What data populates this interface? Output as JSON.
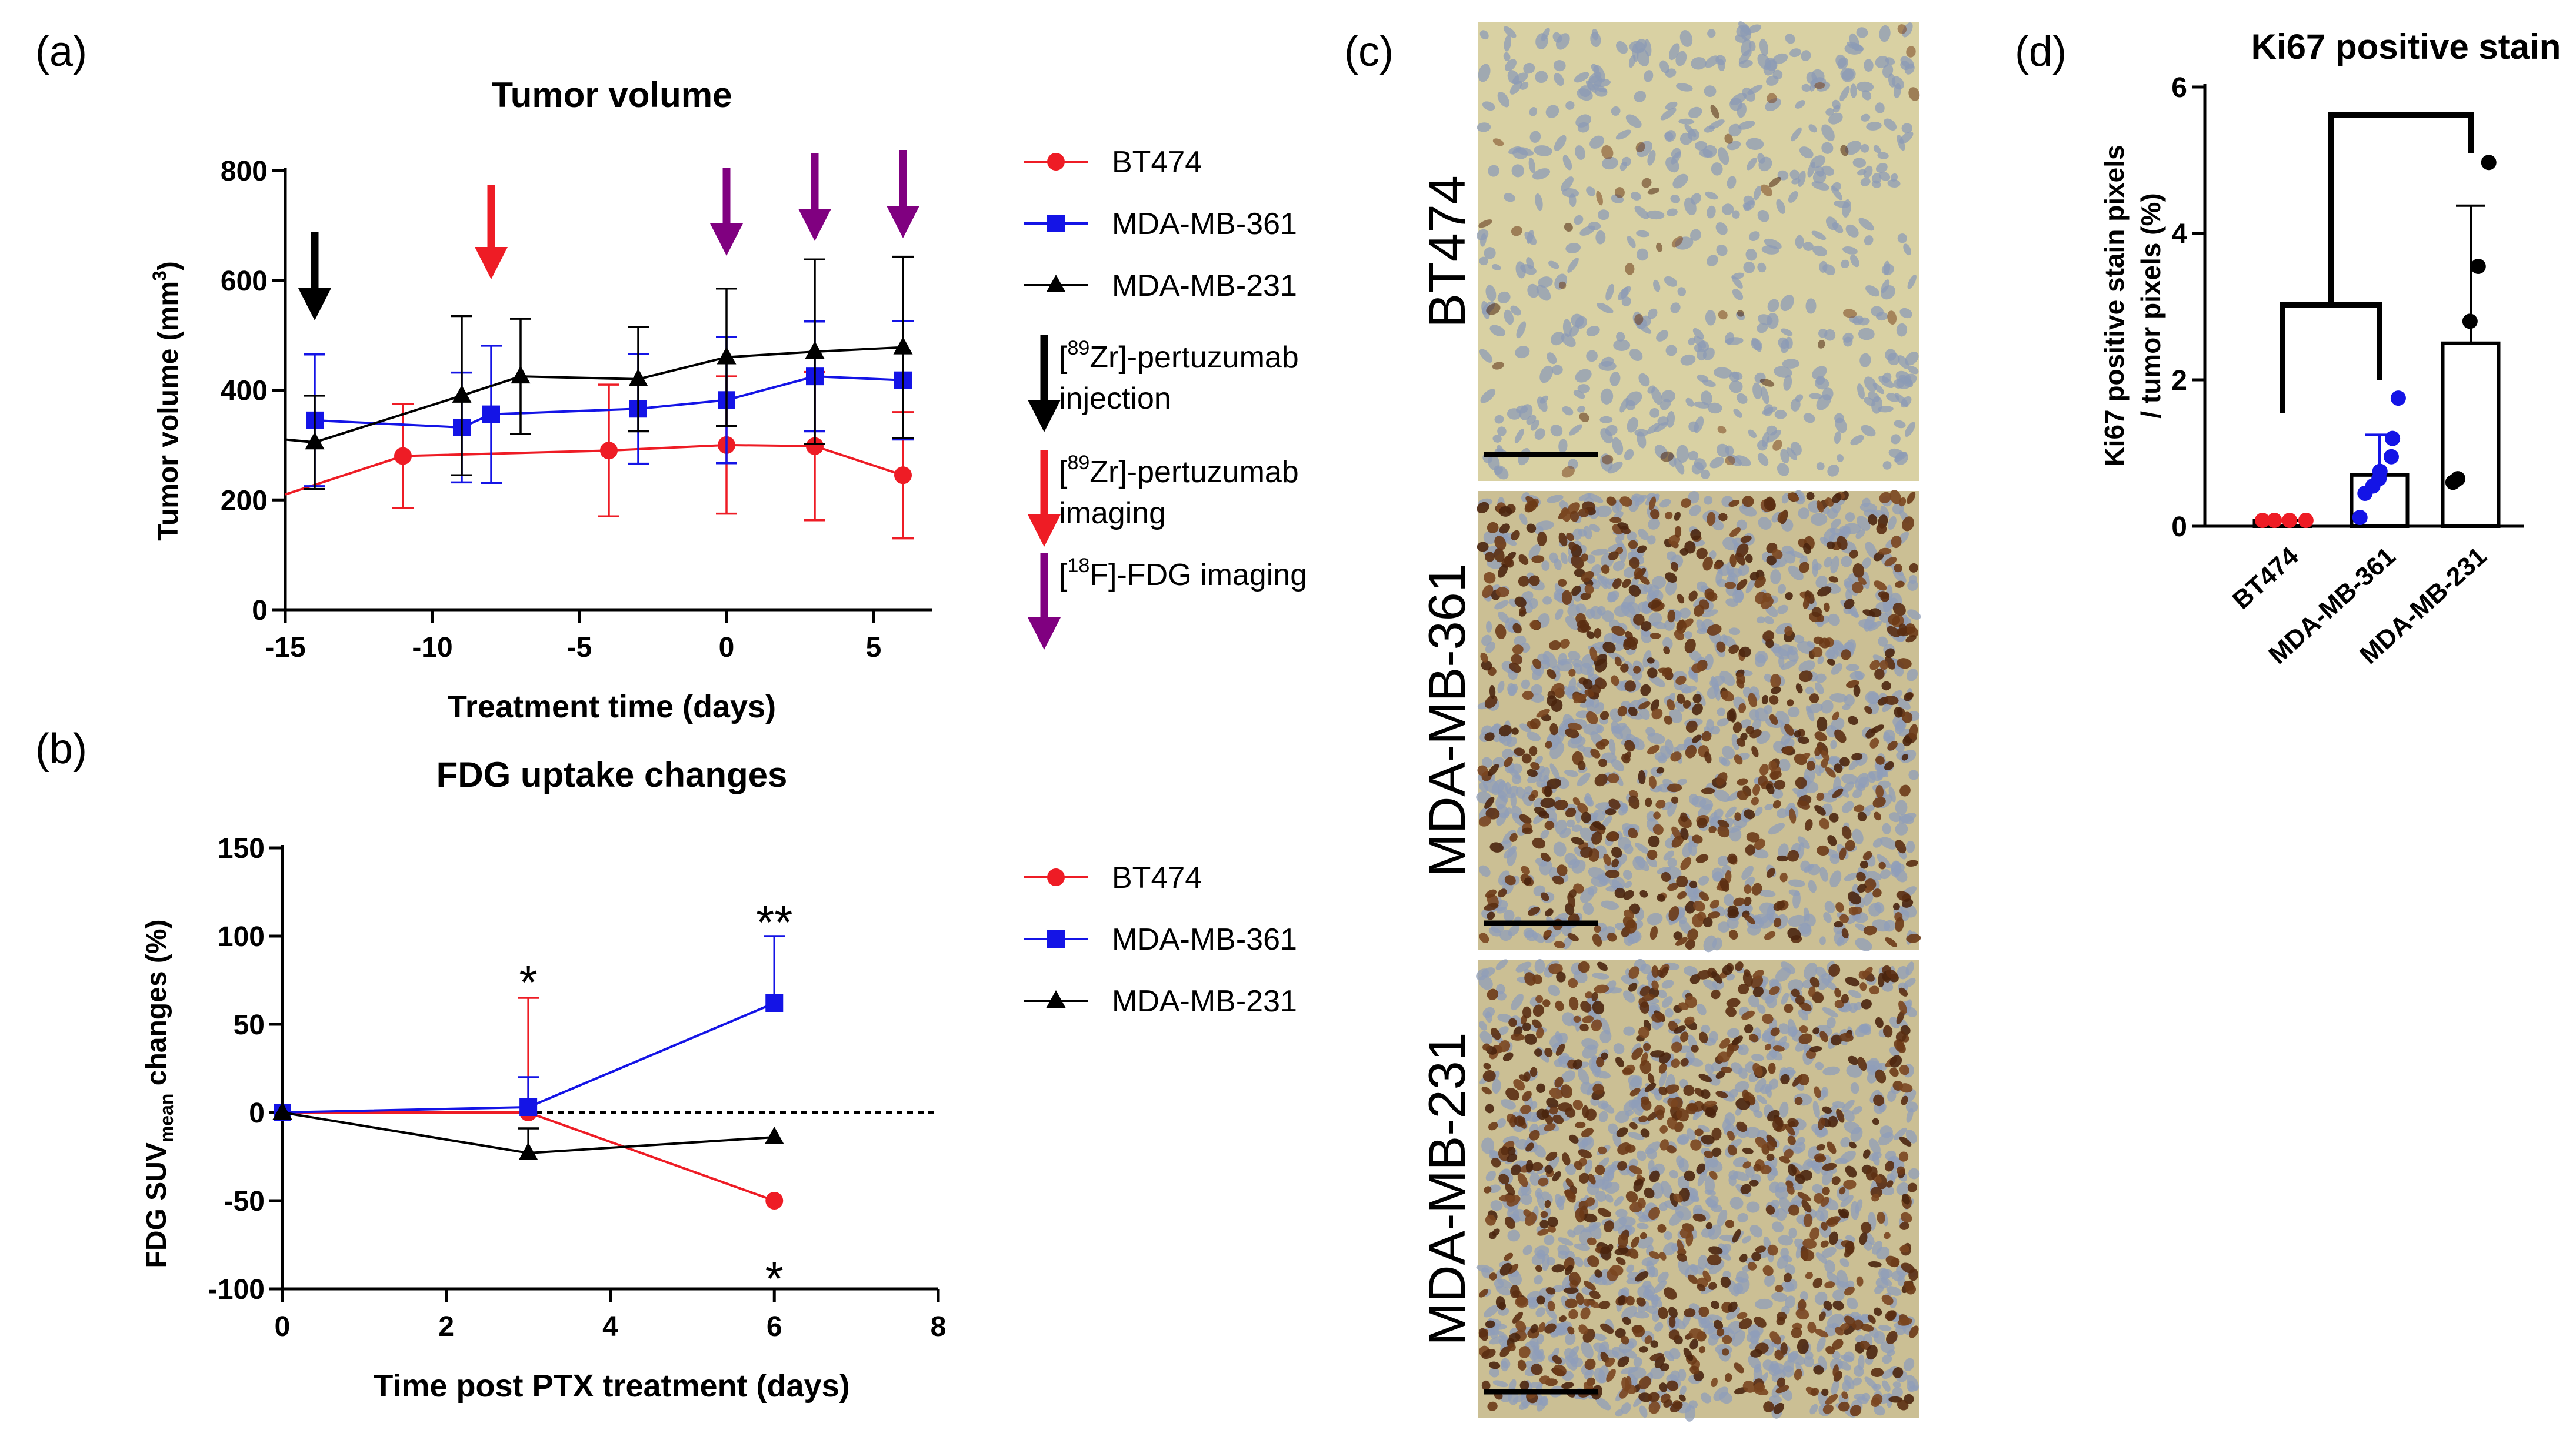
{
  "panels": {
    "a": {
      "label": "(a)"
    },
    "b": {
      "label": "(b)"
    },
    "c": {
      "label": "(c)"
    },
    "d": {
      "label": "(d)"
    }
  },
  "colors": {
    "bt474": "#ee1c25",
    "mda361": "#1414e6",
    "mda231": "#000000",
    "purple": "#800080"
  },
  "chart_data": [
    {
      "id": "a",
      "type": "line",
      "title": "Tumor volume",
      "xlabel": "Treatment time (days)",
      "ylabel": "Tumor volume (mm",
      "ylabel_sup": "3",
      "ylabel_end": ")",
      "xlim": [
        -15,
        7
      ],
      "ylim": [
        0,
        800
      ],
      "xticks": [
        -15,
        -10,
        -5,
        0,
        5
      ],
      "yticks": [
        0,
        200,
        400,
        600,
        800
      ],
      "series": [
        {
          "name": "BT474",
          "color": "#ee1c25",
          "marker": "circle",
          "x": [
            -15,
            -11,
            -4,
            0,
            3,
            6
          ],
          "y": [
            210,
            280,
            290,
            300,
            298,
            245
          ],
          "err": [
            0,
            95,
            120,
            125,
            135,
            115
          ]
        },
        {
          "name": "MDA-MB-361",
          "color": "#1414e6",
          "marker": "square",
          "x": [
            -14,
            -9,
            -8,
            -3,
            0,
            3,
            6
          ],
          "y": [
            345,
            332,
            356,
            366,
            382,
            425,
            418
          ],
          "err": [
            120,
            100,
            125,
            100,
            115,
            100,
            108
          ]
        },
        {
          "name": "MDA-MB-231",
          "color": "#000000",
          "marker": "triangle",
          "x": [
            -15,
            -14,
            -9,
            -7,
            -3,
            0,
            3,
            6
          ],
          "y": [
            310,
            305,
            390,
            425,
            420,
            460,
            470,
            478
          ],
          "err": [
            0,
            85,
            145,
            105,
            95,
            125,
            168,
            165
          ]
        }
      ],
      "arrows": [
        {
          "x": -14,
          "color": "#000000",
          "kind": "pertuzumab-injection"
        },
        {
          "x": -8,
          "color": "#ee1c25",
          "kind": "pertuzumab-imaging"
        },
        {
          "x": 0,
          "color": "#800080",
          "kind": "fdg-imaging"
        },
        {
          "x": 3,
          "color": "#800080",
          "kind": "fdg-imaging"
        },
        {
          "x": 6,
          "color": "#800080",
          "kind": "fdg-imaging"
        }
      ],
      "legend": [
        {
          "text": "BT474",
          "color": "#ee1c25",
          "marker": "circle"
        },
        {
          "text": "MDA-MB-361",
          "color": "#1414e6",
          "marker": "square"
        },
        {
          "text": "MDA-MB-231",
          "color": "#000000",
          "marker": "triangle"
        }
      ],
      "arrow_legend": [
        {
          "color": "#000000",
          "pre": "[",
          "sup": "89",
          "post": "Zr]-pertuzumab",
          "line2": "injection"
        },
        {
          "color": "#ee1c25",
          "pre": "[",
          "sup": "89",
          "post": "Zr]-pertuzumab",
          "line2": "imaging"
        },
        {
          "color": "#800080",
          "pre": "[",
          "sup": "18",
          "post": "F]-FDG imaging",
          "line2": ""
        }
      ]
    },
    {
      "id": "b",
      "type": "line",
      "title": "FDG uptake changes",
      "xlabel": "Time post PTX treatment (days)",
      "ylabel": "FDG SUV",
      "ylabel_sub": "mean",
      "ylabel_end": " changes (%)",
      "xlim": [
        0,
        8
      ],
      "ylim": [
        -100,
        150
      ],
      "xticks": [
        0,
        2,
        4,
        6,
        8
      ],
      "yticks": [
        -100,
        -50,
        0,
        50,
        100,
        150
      ],
      "reference_line": 0,
      "series": [
        {
          "name": "BT474",
          "color": "#ee1c25",
          "marker": "circle",
          "x": [
            0,
            3,
            6
          ],
          "y": [
            0,
            0,
            -50
          ],
          "err": [
            0,
            65,
            0
          ]
        },
        {
          "name": "MDA-MB-361",
          "color": "#1414e6",
          "marker": "square",
          "x": [
            0,
            3,
            6
          ],
          "y": [
            0,
            3,
            62
          ],
          "err": [
            0,
            17,
            38
          ]
        },
        {
          "name": "MDA-MB-231",
          "color": "#000000",
          "marker": "triangle",
          "x": [
            0,
            3,
            6
          ],
          "y": [
            0,
            -23,
            -14
          ],
          "err": [
            0,
            14,
            0
          ]
        }
      ],
      "annotations": [
        {
          "text": "*",
          "x": 3,
          "y": 78
        },
        {
          "text": "**",
          "x": 6,
          "y": 112
        },
        {
          "text": "*",
          "x": 6,
          "y": -90
        }
      ],
      "legend": [
        {
          "text": "BT474",
          "color": "#ee1c25",
          "marker": "circle"
        },
        {
          "text": "MDA-MB-361",
          "color": "#1414e6",
          "marker": "square"
        },
        {
          "text": "MDA-MB-231",
          "color": "#000000",
          "marker": "triangle"
        }
      ]
    },
    {
      "id": "d",
      "type": "bar",
      "title": "Ki67 positive stain",
      "ylabel_line1": "Ki67 positive  stain pixels",
      "ylabel_line2": "/ tumor pixels (%)",
      "ylim": [
        0,
        6
      ],
      "yticks": [
        0,
        2,
        4,
        6
      ],
      "categories": [
        "BT474",
        "MDA-MB-361",
        "MDA-MB-231"
      ],
      "values": [
        0.08,
        0.7,
        2.5
      ],
      "errors": [
        0,
        0.55,
        1.88
      ],
      "colors": [
        "#ee1c25",
        "#1414e6",
        "#000000"
      ],
      "points": [
        [
          0.08,
          0.08,
          0.08,
          0.08
        ],
        [
          0.12,
          0.45,
          0.55,
          0.65,
          0.75,
          0.95,
          1.2,
          1.75
        ],
        [
          0.6,
          0.65,
          2.8,
          3.55,
          4.97
        ]
      ],
      "bracket_pairs": [
        {
          "left": 0,
          "right": 1
        },
        {
          "left": "0-1",
          "right": 2
        }
      ]
    }
  ],
  "micrographs": [
    {
      "label": "BT474",
      "density": "low"
    },
    {
      "label": "MDA-MB-361",
      "density": "high"
    },
    {
      "label": "MDA-MB-231",
      "density": "high"
    }
  ]
}
